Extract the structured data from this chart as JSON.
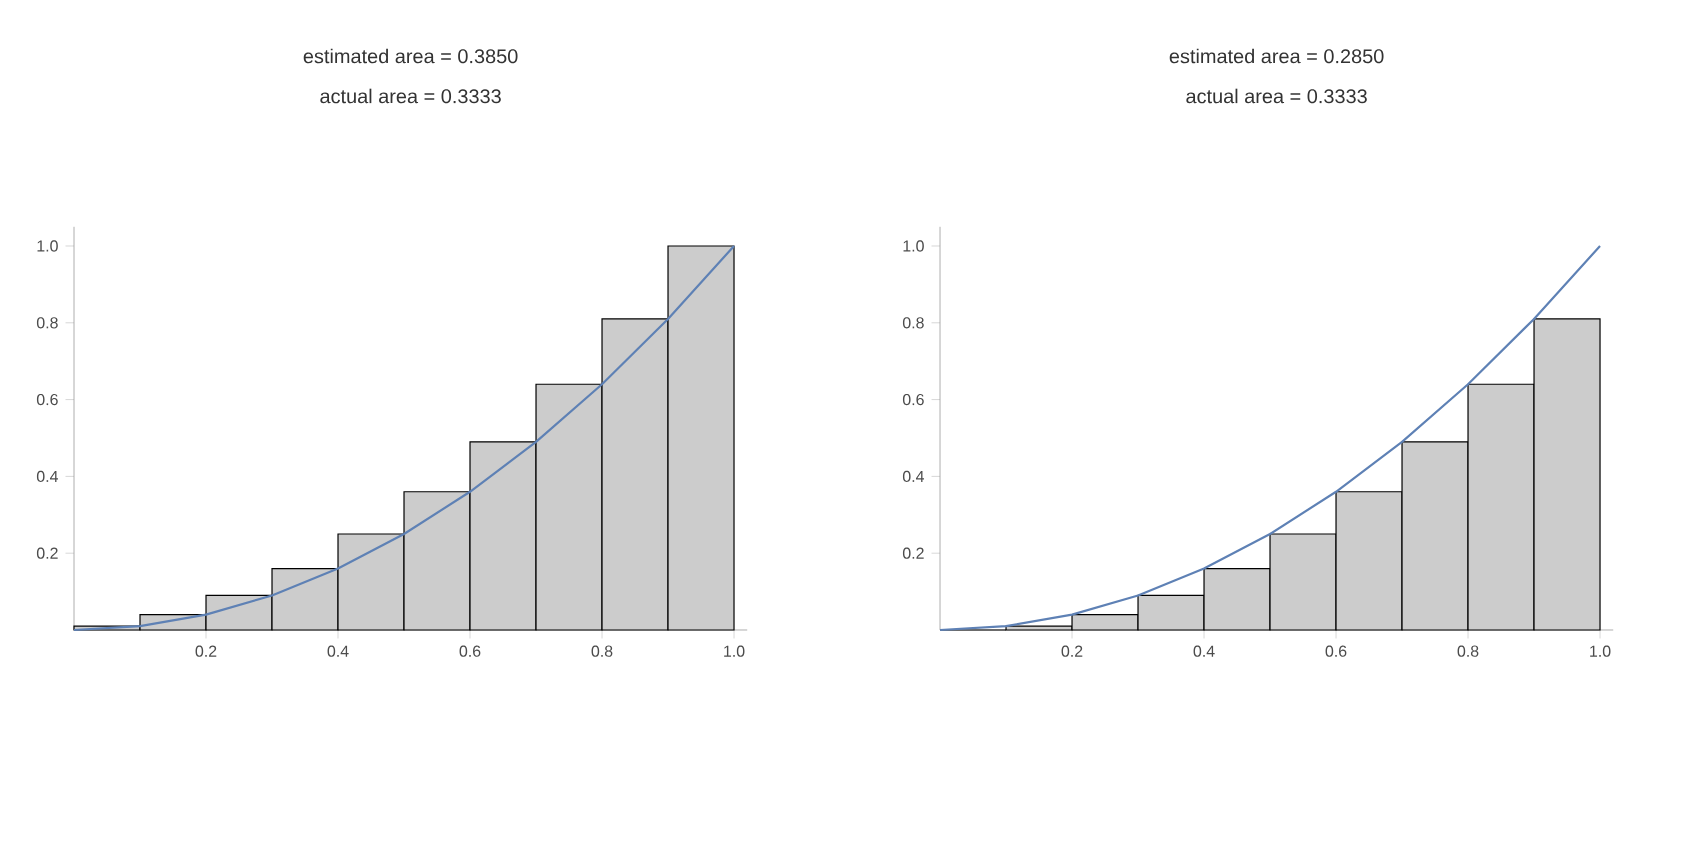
{
  "chart_data": [
    {
      "type": "histogram",
      "title": "estimated area = 0.3850",
      "subtitle": "actual area = 0.3333",
      "bins": [
        0,
        0.1,
        0.2,
        0.3,
        0.4,
        0.5,
        0.6,
        0.7,
        0.8,
        0.9,
        1.0
      ],
      "values": [
        0.01,
        0.04,
        0.09,
        0.16,
        0.25,
        0.36,
        0.49,
        0.64,
        0.81,
        1.0
      ],
      "color": "#cccccc",
      "series": [
        {
          "type": "line",
          "color": "#5e81b5",
          "x": [
            0,
            0.1,
            0.2,
            0.3,
            0.4,
            0.5,
            0.6,
            0.7,
            0.8,
            0.9,
            1.0
          ],
          "values": [
            0,
            0.01,
            0.04,
            0.09,
            0.16,
            0.25,
            0.36,
            0.49,
            0.64,
            0.81,
            1.0
          ]
        }
      ],
      "xlim": [
        0,
        1.02
      ],
      "ylim": [
        0,
        1.05
      ],
      "xticks": [
        0.2,
        0.4,
        0.6,
        0.8,
        {
          "value": 1.0,
          "label": "1.0"
        }
      ],
      "yticks": [
        0.2,
        0.4,
        0.6,
        0.8,
        {
          "value": 1.0,
          "label": "1.0"
        }
      ],
      "grid": false
    },
    {
      "type": "histogram",
      "title": "estimated area = 0.2850",
      "subtitle": "actual area = 0.3333",
      "bins": [
        0,
        0.1,
        0.2,
        0.3,
        0.4,
        0.5,
        0.6,
        0.7,
        0.8,
        0.9,
        1.0
      ],
      "values": [
        0,
        0.01,
        0.04,
        0.09,
        0.16,
        0.25,
        0.36,
        0.49,
        0.64,
        0.81
      ],
      "color": "#cccccc",
      "series": [
        {
          "type": "line",
          "color": "#5e81b5",
          "x": [
            0,
            0.1,
            0.2,
            0.3,
            0.4,
            0.5,
            0.6,
            0.7,
            0.8,
            0.9,
            1.0
          ],
          "values": [
            0,
            0.01,
            0.04,
            0.09,
            0.16,
            0.25,
            0.36,
            0.49,
            0.64,
            0.81,
            1.0
          ]
        }
      ],
      "xlim": [
        0,
        1.02
      ],
      "ylim": [
        0,
        1.05
      ],
      "xticks": [
        0.2,
        0.4,
        0.6,
        0.8,
        {
          "value": 1.0,
          "label": "1.0"
        }
      ],
      "yticks": [
        0.2,
        0.4,
        0.6,
        0.8,
        {
          "value": 1.0,
          "label": "1.0"
        }
      ],
      "grid": false
    }
  ]
}
